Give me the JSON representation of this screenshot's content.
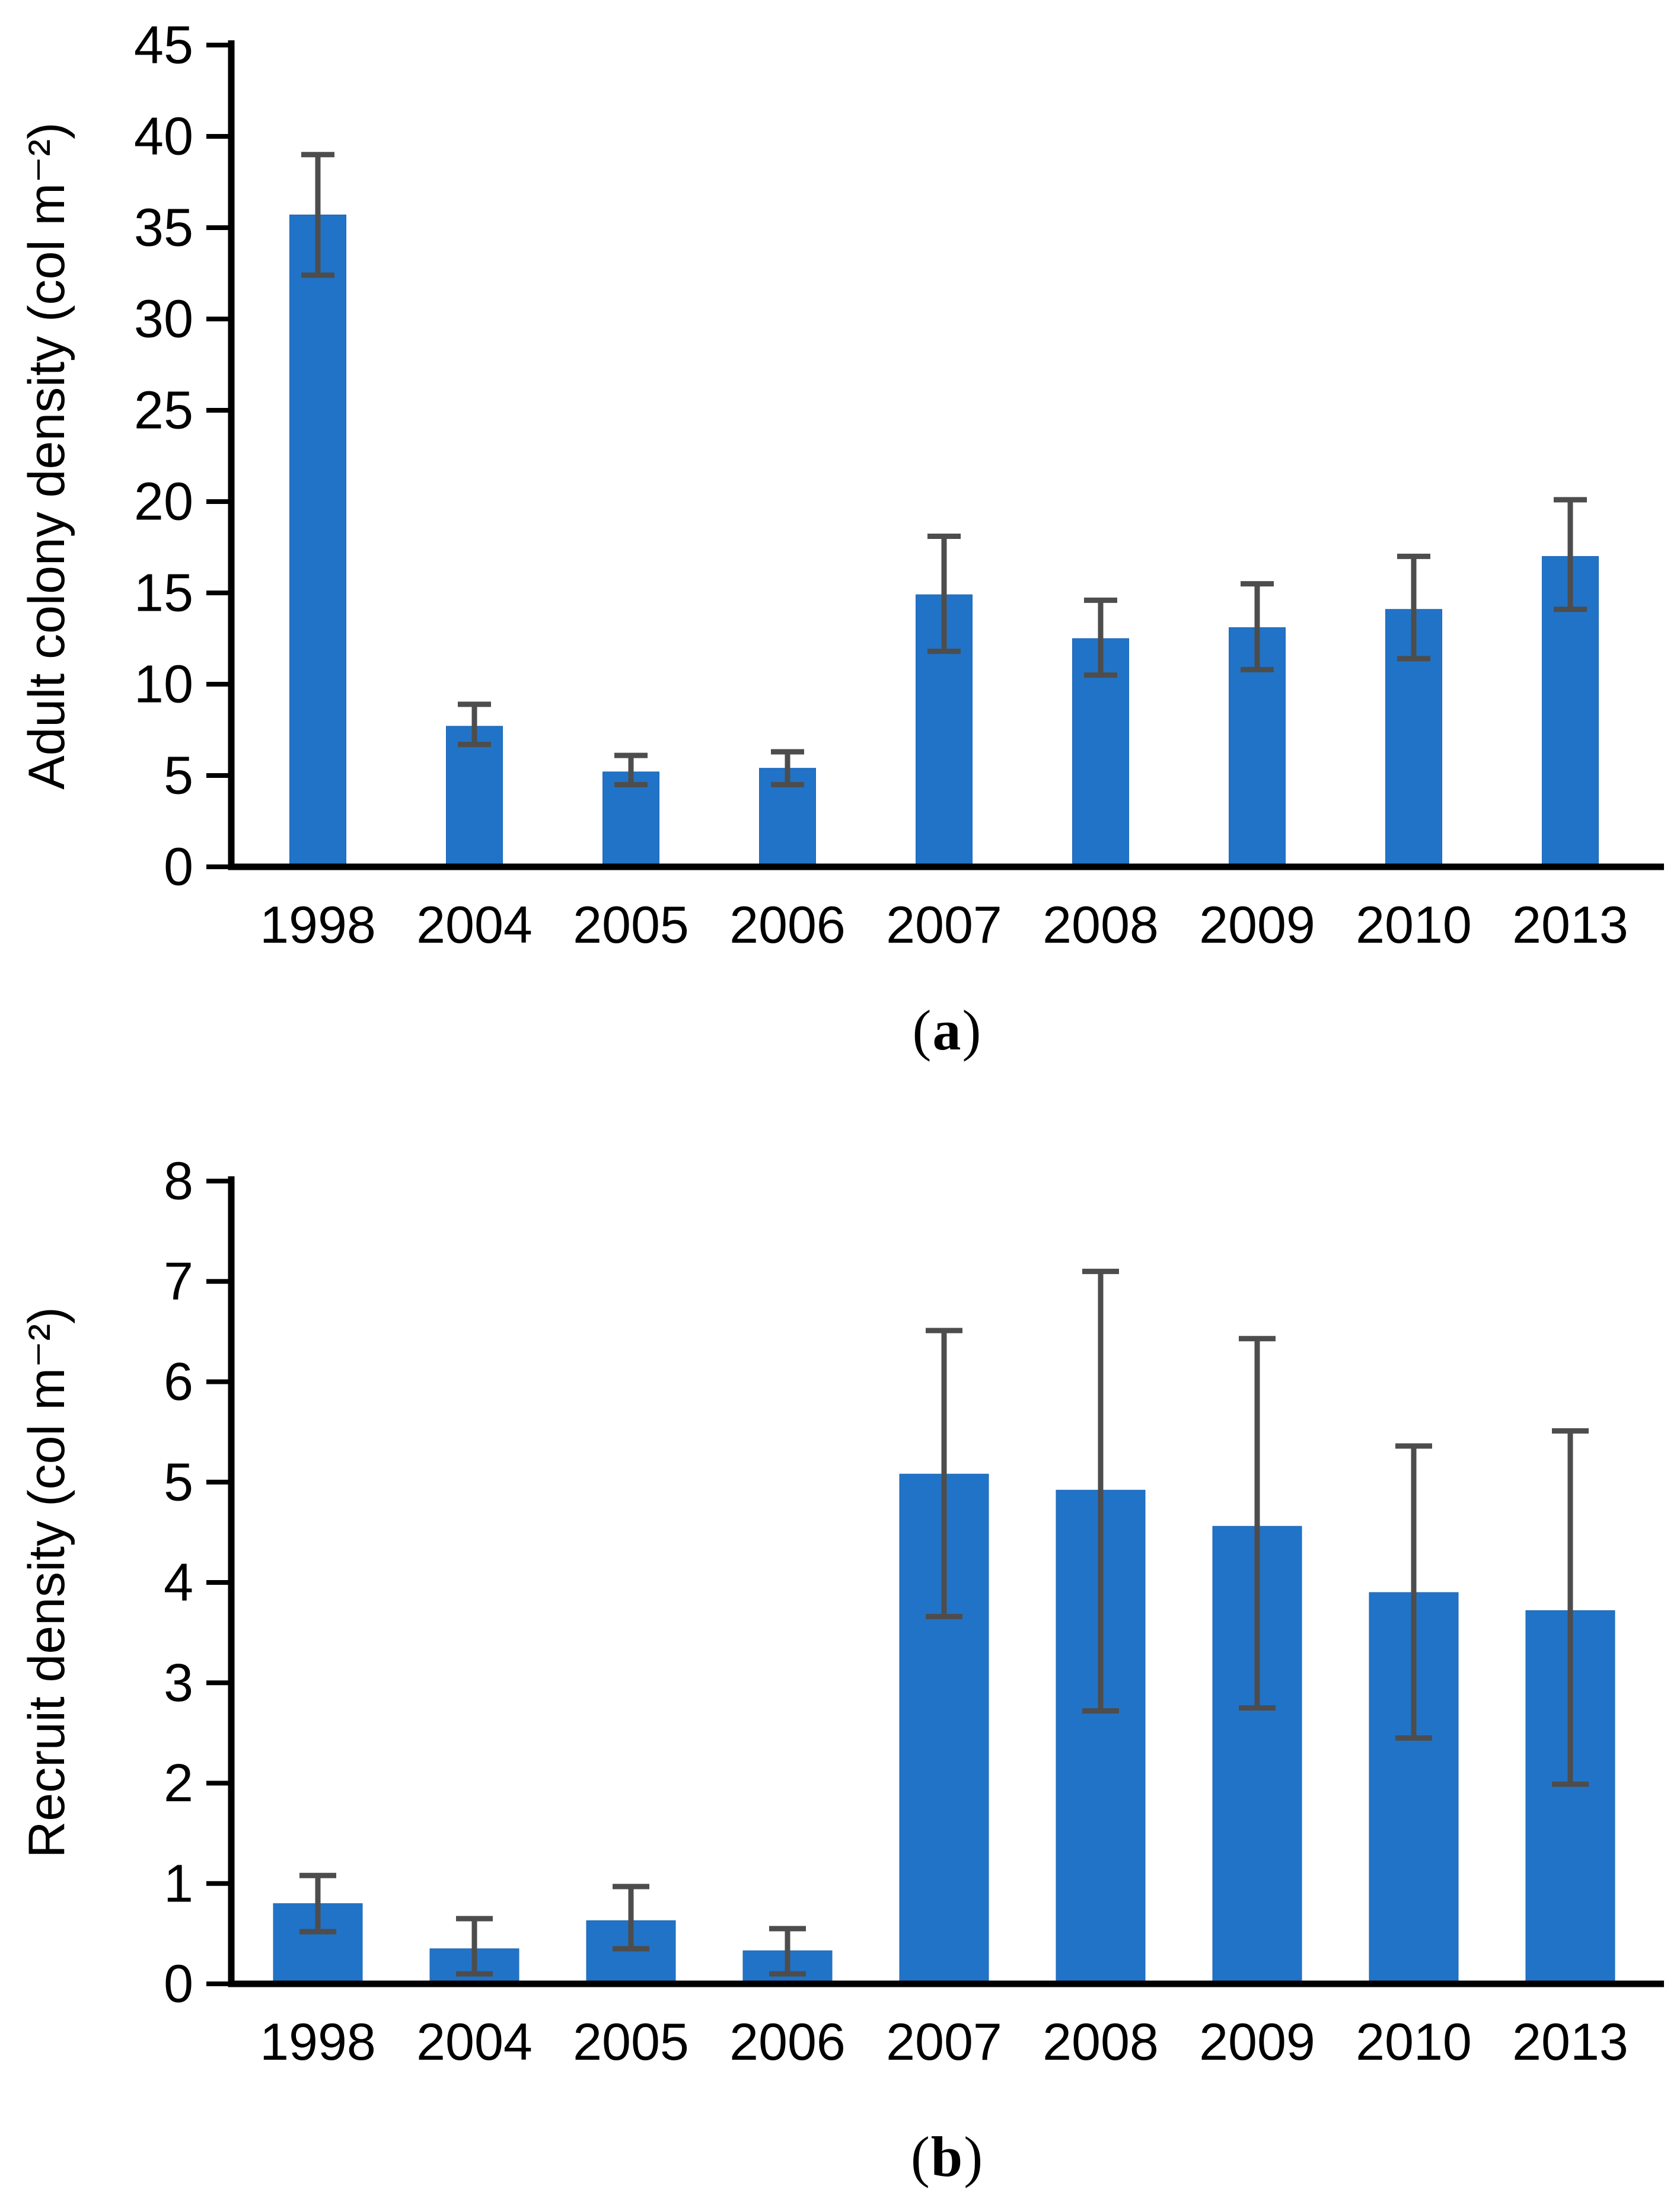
{
  "figure": {
    "background": "#ffffff",
    "bar_color": "#2173c7",
    "bar_edge_color": "#1b66b4",
    "error_bar_color": "#4d4d4d",
    "axis_color": "#000000",
    "tick_label_color": "#000000"
  },
  "chart_data": [
    {
      "type": "bar",
      "panel": "a",
      "ylabel": "Adult colony density (col m⁻²)",
      "xlabel": "",
      "categories": [
        "1998",
        "2004",
        "2005",
        "2006",
        "2007",
        "2008",
        "2009",
        "2010",
        "2013"
      ],
      "values": [
        35.7,
        7.7,
        5.2,
        5.4,
        14.9,
        12.5,
        13.1,
        14.1,
        17.0
      ],
      "error_low": [
        32.4,
        6.7,
        4.5,
        4.5,
        11.8,
        10.5,
        10.8,
        11.4,
        14.1
      ],
      "error_high": [
        39.0,
        8.9,
        6.1,
        6.3,
        18.1,
        14.6,
        15.5,
        17.0,
        20.1
      ],
      "ylim": [
        0,
        45
      ],
      "yticks": [
        0,
        5,
        10,
        15,
        20,
        25,
        30,
        35,
        40,
        45
      ],
      "grid": false,
      "legend": "none"
    },
    {
      "type": "bar",
      "panel": "b",
      "ylabel": "Recruit density (col m⁻²)",
      "xlabel": "",
      "categories": [
        "1998",
        "2004",
        "2005",
        "2006",
        "2007",
        "2008",
        "2009",
        "2010",
        "2013"
      ],
      "values": [
        0.8,
        0.35,
        0.63,
        0.33,
        5.08,
        4.92,
        4.56,
        3.9,
        3.72
      ],
      "error_low": [
        0.52,
        0.1,
        0.35,
        0.1,
        3.66,
        2.72,
        2.75,
        2.45,
        1.99
      ],
      "error_high": [
        1.08,
        0.65,
        0.97,
        0.55,
        6.51,
        7.1,
        6.43,
        5.36,
        5.51
      ],
      "ylim": [
        0,
        8
      ],
      "yticks": [
        0,
        1,
        2,
        3,
        4,
        5,
        6,
        7,
        8
      ],
      "grid": false,
      "legend": "none"
    }
  ],
  "captions": [
    {
      "open": "(",
      "letter": "a",
      "close": ")"
    },
    {
      "open": "(",
      "letter": "b",
      "close": ")"
    }
  ]
}
